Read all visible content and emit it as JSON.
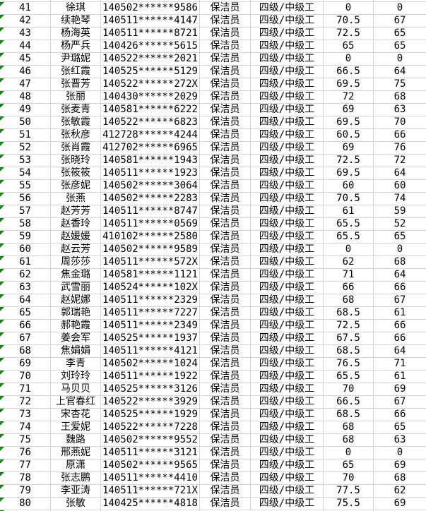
{
  "colors": {
    "background": "#ffffff",
    "gridline": "#d4d4d4",
    "text": "#000000",
    "error_triangle_green": "#148214"
  },
  "icons": {
    "error_indicator": "error-indicator-triangle"
  },
  "partial_top_row": {
    "seq": "",
    "name": "",
    "id": "",
    "job": "保洁员",
    "level": "四级/中级工",
    "score1": "",
    "score2": ""
  },
  "partial_bottom_row": {
    "seq": "",
    "name": "",
    "id": "",
    "job": "",
    "level": "",
    "score1": "",
    "score2": ""
  },
  "table": {
    "rows": [
      {
        "seq": "41",
        "name": "徐琪",
        "id": "140502******9586",
        "job": "保洁员",
        "level": "四级/中级工",
        "score1": "0",
        "score2": "0"
      },
      {
        "seq": "42",
        "name": "续艳琴",
        "id": "140511******4147",
        "job": "保洁员",
        "level": "四级/中级工",
        "score1": "70.5",
        "score2": "67"
      },
      {
        "seq": "43",
        "name": "杨海英",
        "id": "140511******8721",
        "job": "保洁员",
        "level": "四级/中级工",
        "score1": "72.5",
        "score2": "65"
      },
      {
        "seq": "44",
        "name": "杨严兵",
        "id": "140426******5615",
        "job": "保洁员",
        "level": "四级/中级工",
        "score1": "65",
        "score2": "65"
      },
      {
        "seq": "45",
        "name": "尹璐妮",
        "id": "140522******2021",
        "job": "保洁员",
        "level": "四级/中级工",
        "score1": "0",
        "score2": "0"
      },
      {
        "seq": "46",
        "name": "张红霞",
        "id": "140525******5129",
        "job": "保洁员",
        "level": "四级/中级工",
        "score1": "66.5",
        "score2": "64"
      },
      {
        "seq": "47",
        "name": "张晋芳",
        "id": "140522******272X",
        "job": "保洁员",
        "level": "四级/中级工",
        "score1": "69.5",
        "score2": "75"
      },
      {
        "seq": "48",
        "name": "张丽",
        "id": "140430******2029",
        "job": "保洁员",
        "level": "四级/中级工",
        "score1": "72",
        "score2": "68"
      },
      {
        "seq": "49",
        "name": "张麦青",
        "id": "140581******6222",
        "job": "保洁员",
        "level": "四级/中级工",
        "score1": "69",
        "score2": "63"
      },
      {
        "seq": "50",
        "name": "张敏霞",
        "id": "140522******6823",
        "job": "保洁员",
        "level": "四级/中级工",
        "score1": "69.5",
        "score2": "70"
      },
      {
        "seq": "51",
        "name": "张秋彦",
        "id": "412728******4244",
        "job": "保洁员",
        "level": "四级/中级工",
        "score1": "60.5",
        "score2": "66"
      },
      {
        "seq": "52",
        "name": "张肖霞",
        "id": "412702******6965",
        "job": "保洁员",
        "level": "四级/中级工",
        "score1": "69",
        "score2": "76"
      },
      {
        "seq": "53",
        "name": "张晓玲",
        "id": "140581******1943",
        "job": "保洁员",
        "level": "四级/中级工",
        "score1": "72.5",
        "score2": "72"
      },
      {
        "seq": "54",
        "name": "张筱筱",
        "id": "140511******1923",
        "job": "保洁员",
        "level": "四级/中级工",
        "score1": "69.5",
        "score2": "64"
      },
      {
        "seq": "55",
        "name": "张彦妮",
        "id": "140502******3064",
        "job": "保洁员",
        "level": "四级/中级工",
        "score1": "60",
        "score2": "60"
      },
      {
        "seq": "56",
        "name": "张燕",
        "id": "140502******2283",
        "job": "保洁员",
        "level": "四级/中级工",
        "score1": "70.5",
        "score2": "74"
      },
      {
        "seq": "57",
        "name": "赵芳芳",
        "id": "140511******8747",
        "job": "保洁员",
        "level": "四级/中级工",
        "score1": "61",
        "score2": "59"
      },
      {
        "seq": "58",
        "name": "赵香玲",
        "id": "140511******0569",
        "job": "保洁员",
        "level": "四级/中级工",
        "score1": "65.5",
        "score2": "52"
      },
      {
        "seq": "59",
        "name": "赵媛媛",
        "id": "410102******2580",
        "job": "保洁员",
        "level": "四级/中级工",
        "score1": "65.5",
        "score2": "65"
      },
      {
        "seq": "60",
        "name": "赵云芳",
        "id": "140502******9589",
        "job": "保洁员",
        "level": "四级/中级工",
        "score1": "0",
        "score2": "0"
      },
      {
        "seq": "61",
        "name": "周莎莎",
        "id": "140511******572X",
        "job": "保洁员",
        "level": "四级/中级工",
        "score1": "62",
        "score2": "68"
      },
      {
        "seq": "62",
        "name": "焦金璐",
        "id": "140581******1121",
        "job": "保洁员",
        "level": "四级/中级工",
        "score1": "71",
        "score2": "64"
      },
      {
        "seq": "63",
        "name": "武雪丽",
        "id": "140524******102X",
        "job": "保洁员",
        "level": "四级/中级工",
        "score1": "66",
        "score2": "66"
      },
      {
        "seq": "64",
        "name": "赵妮娜",
        "id": "140511******2329",
        "job": "保洁员",
        "level": "四级/中级工",
        "score1": "68",
        "score2": "67"
      },
      {
        "seq": "65",
        "name": "郭瑞艳",
        "id": "140511******7227",
        "job": "保洁员",
        "level": "四级/中级工",
        "score1": "68.5",
        "score2": "61"
      },
      {
        "seq": "66",
        "name": "郝艳霞",
        "id": "140511******2349",
        "job": "保洁员",
        "level": "四级/中级工",
        "score1": "72.5",
        "score2": "66"
      },
      {
        "seq": "67",
        "name": "姜会军",
        "id": "140525******1937",
        "job": "保洁员",
        "level": "四级/中级工",
        "score1": "67.5",
        "score2": "66"
      },
      {
        "seq": "68",
        "name": "焦娟娟",
        "id": "140511******4121",
        "job": "保洁员",
        "level": "四级/中级工",
        "score1": "68.5",
        "score2": "64"
      },
      {
        "seq": "69",
        "name": "李青",
        "id": "140502******1024",
        "job": "保洁员",
        "level": "四级/中级工",
        "score1": "76.5",
        "score2": "71"
      },
      {
        "seq": "70",
        "name": "刘玲玲",
        "id": "140511******1922",
        "job": "保洁员",
        "level": "四级/中级工",
        "score1": "65.5",
        "score2": "61"
      },
      {
        "seq": "71",
        "name": "马贝贝",
        "id": "140525******3126",
        "job": "保洁员",
        "level": "四级/中级工",
        "score1": "70",
        "score2": "69"
      },
      {
        "seq": "72",
        "name": "上官春红",
        "id": "140522******3929",
        "job": "保洁员",
        "level": "四级/中级工",
        "score1": "66.5",
        "score2": "67"
      },
      {
        "seq": "73",
        "name": "宋杏花",
        "id": "140525******1929",
        "job": "保洁员",
        "level": "四级/中级工",
        "score1": "68.5",
        "score2": "66"
      },
      {
        "seq": "74",
        "name": "王爱妮",
        "id": "140522******7228",
        "job": "保洁员",
        "level": "四级/中级工",
        "score1": "68",
        "score2": "65"
      },
      {
        "seq": "75",
        "name": "魏路",
        "id": "140502******9552",
        "job": "保洁员",
        "level": "四级/中级工",
        "score1": "68",
        "score2": "63"
      },
      {
        "seq": "76",
        "name": "邢燕妮",
        "id": "140511******3121",
        "job": "保洁员",
        "level": "四级/中级工",
        "score1": "0",
        "score2": "0"
      },
      {
        "seq": "77",
        "name": "原潇",
        "id": "140502******9565",
        "job": "保洁员",
        "level": "四级/中级工",
        "score1": "65",
        "score2": "69"
      },
      {
        "seq": "78",
        "name": "张志鹏",
        "id": "140511******4410",
        "job": "保洁员",
        "level": "四级/中级工",
        "score1": "70",
        "score2": "68"
      },
      {
        "seq": "79",
        "name": "李亚涛",
        "id": "140511******721X",
        "job": "保洁员",
        "level": "四级/中级工",
        "score1": "77.5",
        "score2": "62"
      },
      {
        "seq": "80",
        "name": "张敏",
        "id": "140425******4818",
        "job": "保洁员",
        "level": "四级/中级工",
        "score1": "75.5",
        "score2": "69"
      }
    ]
  }
}
